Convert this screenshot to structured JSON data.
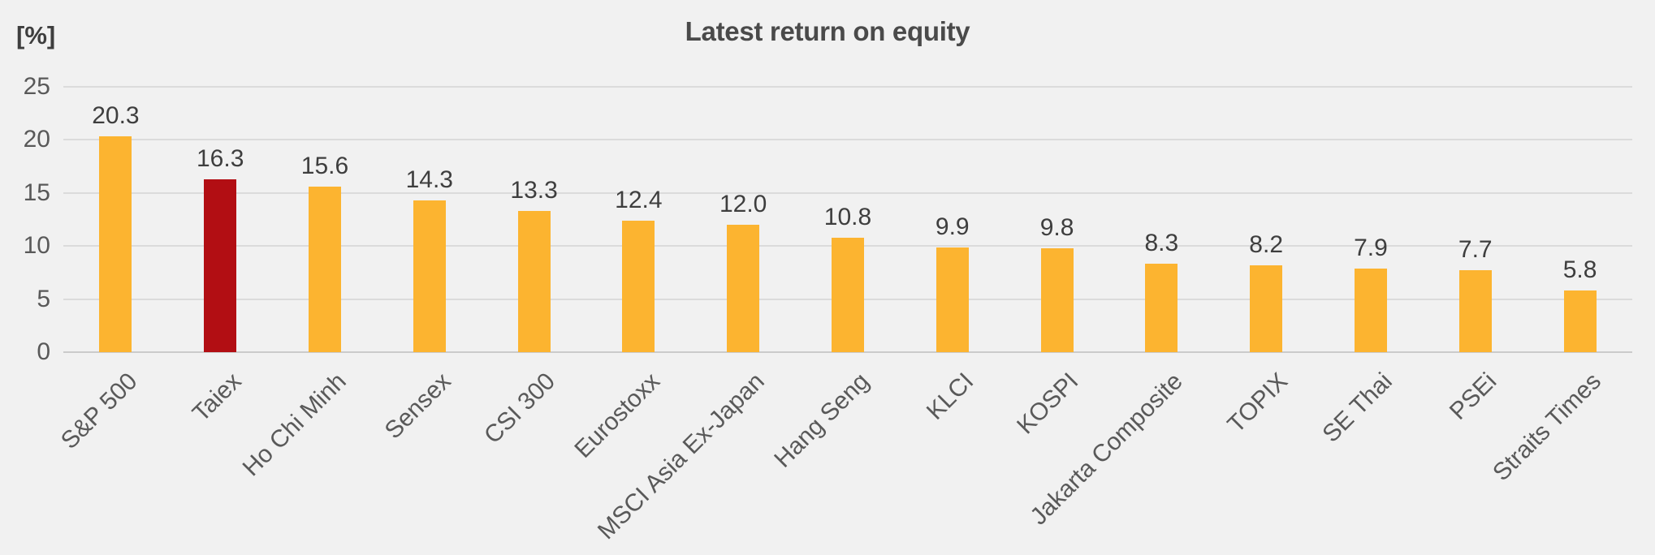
{
  "chart_data": {
    "type": "bar",
    "title": "Latest return on equity",
    "ylabel": "[%]",
    "xlabel": "",
    "categories": [
      "S&P 500",
      "Taiex",
      "Ho Chi Minh",
      "Sensex",
      "CSI 300",
      "Eurostoxx",
      "MSCI Asia Ex-Japan",
      "Hang Seng",
      "KLCI",
      "KOSPI",
      "Jakarta Composite",
      "TOPIX",
      "SE Thai",
      "PSEi",
      "Straits Times"
    ],
    "values": [
      20.3,
      16.3,
      15.6,
      14.3,
      13.3,
      12.4,
      12.0,
      10.8,
      9.9,
      9.8,
      8.3,
      8.2,
      7.9,
      7.7,
      5.8
    ],
    "value_labels": [
      "20.3",
      "16.3",
      "15.6",
      "14.3",
      "13.3",
      "12.4",
      "12.0",
      "10.8",
      "9.9",
      "9.8",
      "8.3",
      "8.2",
      "7.9",
      "7.7",
      "5.8"
    ],
    "highlighted_category": "Taiex",
    "highlight_index": 1,
    "bar_color": "#FCB430",
    "highlight_color": "#B20E13",
    "ylim": [
      0,
      25
    ],
    "yticks": [
      0,
      5,
      10,
      15,
      20,
      25
    ],
    "grid": true,
    "legend": false,
    "background_color": "#F1F1F1",
    "gridline_color": "#DBDBDB",
    "baseline_color": "#CBCBCB",
    "label_rotation_deg": -45
  }
}
